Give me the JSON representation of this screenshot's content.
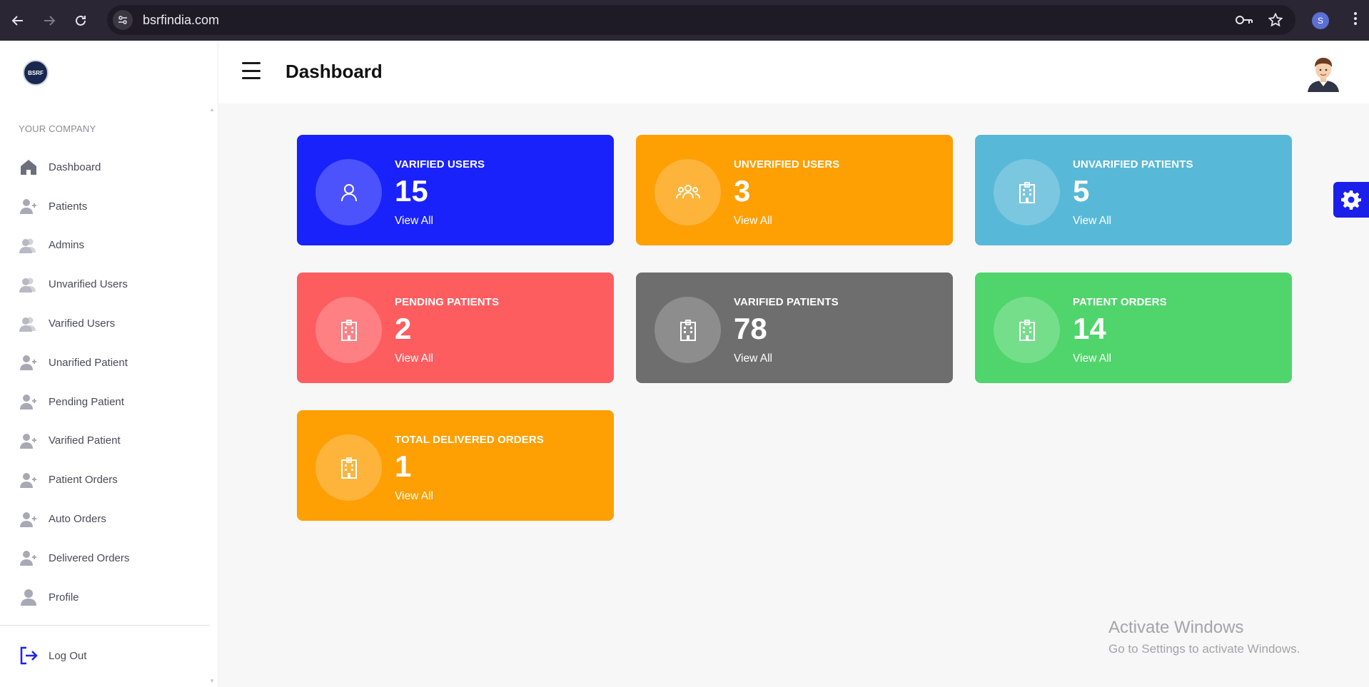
{
  "browser": {
    "url": "bsrfindia.com",
    "profile_initial": "S"
  },
  "header": {
    "title": "Dashboard"
  },
  "sidebar": {
    "logo_text": "BSRF",
    "section_label": "YOUR COMPANY",
    "items": [
      {
        "label": "Dashboard",
        "icon": "home-icon"
      },
      {
        "label": "Patients",
        "icon": "user-plus-icon"
      },
      {
        "label": "Admins",
        "icon": "users-icon"
      },
      {
        "label": "Unvarified Users",
        "icon": "users-icon"
      },
      {
        "label": "Varified Users",
        "icon": "users-icon"
      },
      {
        "label": "Unarified Patient",
        "icon": "user-plus-icon"
      },
      {
        "label": "Pending Patient",
        "icon": "user-plus-icon"
      },
      {
        "label": "Varified Patient",
        "icon": "user-plus-icon"
      },
      {
        "label": "Patient Orders",
        "icon": "user-plus-icon"
      },
      {
        "label": "Auto Orders",
        "icon": "user-plus-icon"
      },
      {
        "label": "Delivered Orders",
        "icon": "user-plus-icon"
      },
      {
        "label": "Profile",
        "icon": "user-icon"
      }
    ],
    "logout_label": "Log Out"
  },
  "cards": [
    {
      "label": "VARIFIED USERS",
      "value": "15",
      "link": "View All",
      "color": "#1a22fb",
      "icon": "user-icon"
    },
    {
      "label": "UNVERIFIED USERS",
      "value": "3",
      "link": "View All",
      "color": "#fe9f04",
      "icon": "group-icon"
    },
    {
      "label": "UNVARIFIED PATIENTS",
      "value": "5",
      "link": "View All",
      "color": "#58b8d8",
      "icon": "hospital-icon"
    },
    {
      "label": "PENDING PATIENTS",
      "value": "2",
      "link": "View All",
      "color": "#fe5d60",
      "icon": "hospital-icon"
    },
    {
      "label": "VARIFIED PATIENTS",
      "value": "78",
      "link": "View All",
      "color": "#6e6e6e",
      "icon": "hospital-icon"
    },
    {
      "label": "PATIENT ORDERS",
      "value": "14",
      "link": "View All",
      "color": "#4fd56b",
      "icon": "hospital-icon"
    },
    {
      "label": "TOTAL DELIVERED ORDERS",
      "value": "1",
      "link": "View All",
      "color": "#fe9f04",
      "icon": "hospital-icon"
    }
  ],
  "watermark": {
    "line1": "Activate Windows",
    "line2": "Go to Settings to activate Windows."
  }
}
